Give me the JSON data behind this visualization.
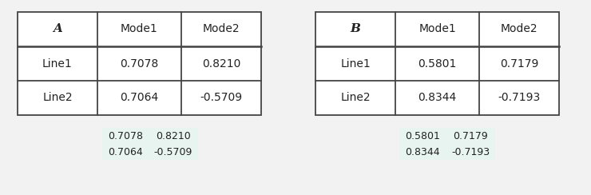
{
  "table_A": {
    "header": [
      "A",
      "Mode1",
      "Mode2"
    ],
    "rows": [
      [
        "Line1",
        "0.7078",
        "0.8210"
      ],
      [
        "Line2",
        "0.7064",
        "-0.5709"
      ]
    ]
  },
  "table_B": {
    "header": [
      "B",
      "Mode1",
      "Mode2"
    ],
    "rows": [
      [
        "Line1",
        "0.5801",
        "0.7179"
      ],
      [
        "Line2",
        "0.8344",
        "-0.7193"
      ]
    ]
  },
  "mini_A": {
    "rows": [
      [
        "0.7078",
        "0.8210"
      ],
      [
        "0.7064",
        "-0.5709"
      ]
    ]
  },
  "mini_B": {
    "rows": [
      [
        "0.5801",
        "0.7179"
      ],
      [
        "0.8344",
        "-0.7193"
      ]
    ]
  },
  "mini_bg_color": "#e8f4f0",
  "border_color": "#444444",
  "text_color": "#222222",
  "fig_bg": "#f2f2f2"
}
